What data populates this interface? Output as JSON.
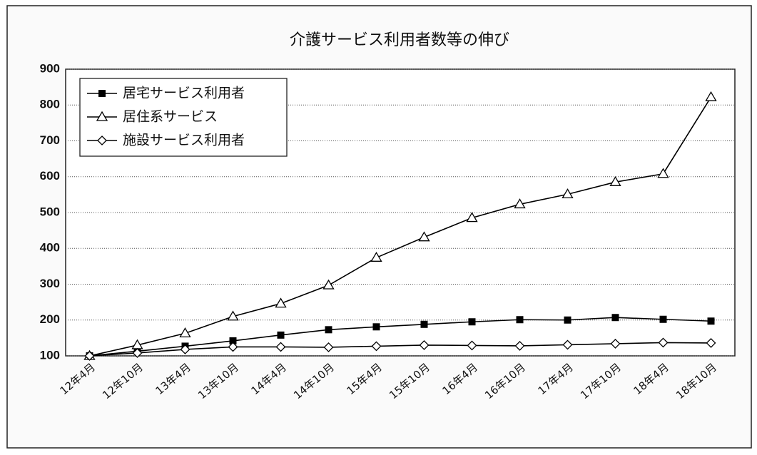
{
  "chart_data": {
    "type": "line",
    "title": "介護サービス利用者数等の伸び",
    "categories": [
      "12年4月",
      "12年10月",
      "13年4月",
      "13年10月",
      "14年4月",
      "14年10月",
      "15年4月",
      "15年10月",
      "16年4月",
      "16年10月",
      "17年4月",
      "17年10月",
      "18年4月",
      "18年10月"
    ],
    "series": [
      {
        "name": "居宅サービス利用者",
        "color": "#000000",
        "marker": "square",
        "values": [
          100,
          113,
          127,
          142,
          158,
          173,
          181,
          188,
          195,
          201,
          200,
          207,
          202,
          197
        ]
      },
      {
        "name": "居住系サービス",
        "color": "#000000",
        "marker": "triangle",
        "values": [
          100,
          130,
          163,
          210,
          246,
          297,
          374,
          431,
          485,
          523,
          551,
          585,
          608,
          822
        ]
      },
      {
        "name": "施設サービス利用者",
        "color": "#000000",
        "marker": "diamond",
        "values": [
          100,
          108,
          118,
          125,
          125,
          124,
          127,
          130,
          129,
          128,
          131,
          134,
          137,
          136
        ]
      }
    ],
    "ylim": [
      100,
      900
    ],
    "yticks": [
      100,
      200,
      300,
      400,
      500,
      600,
      700,
      800,
      900
    ],
    "grid": true,
    "legend": "upper-left"
  }
}
